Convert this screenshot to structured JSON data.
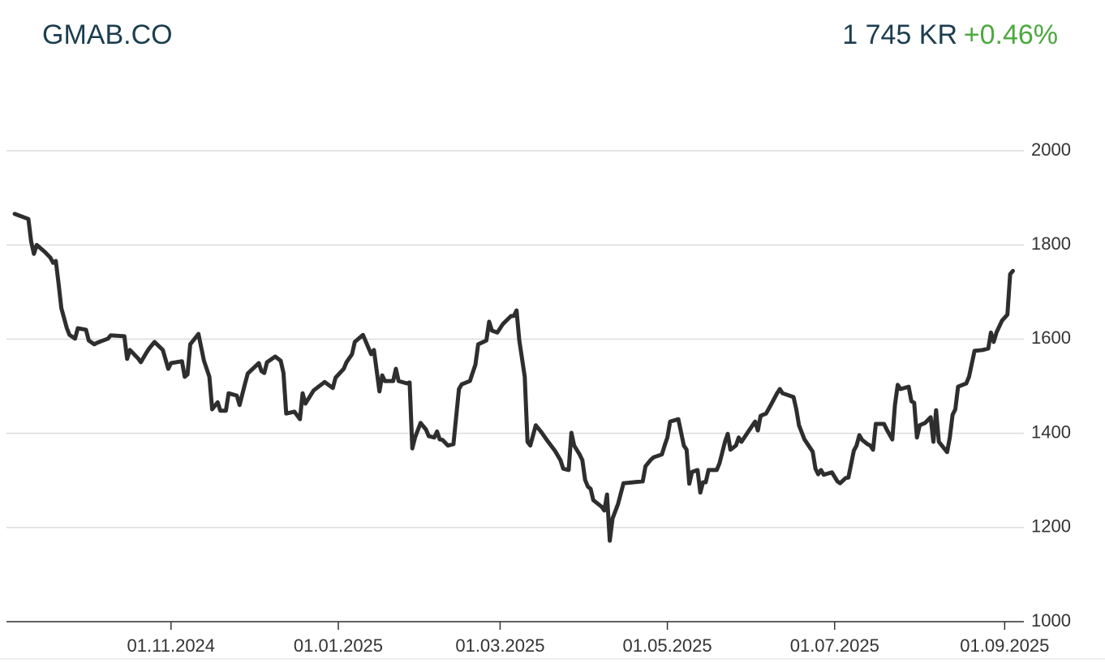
{
  "chart_data": {
    "type": "line",
    "title": "GMAB.CO",
    "price": "1 745 KR",
    "change": "+0.46%",
    "title_color": "#1c3d4f",
    "change_color": "#4ca83f",
    "grid": true,
    "x": [
      "2024-09-05",
      "2024-09-10",
      "2024-09-11",
      "2024-09-12",
      "2024-09-13",
      "2024-09-16",
      "2024-09-18",
      "2024-09-19",
      "2024-09-20",
      "2024-09-21",
      "2024-09-22",
      "2024-09-24",
      "2024-09-25",
      "2024-09-27",
      "2024-09-28",
      "2024-10-01",
      "2024-10-02",
      "2024-10-04",
      "2024-10-05",
      "2024-10-09",
      "2024-10-10",
      "2024-10-15",
      "2024-10-16",
      "2024-10-17",
      "2024-10-20",
      "2024-10-21",
      "2024-10-23",
      "2024-10-24",
      "2024-10-26",
      "2024-10-29",
      "2024-10-31",
      "2024-11-01",
      "2024-11-05",
      "2024-11-06",
      "2024-11-07",
      "2024-11-08",
      "2024-11-11",
      "2024-11-13",
      "2024-11-15",
      "2024-11-16",
      "2024-11-18",
      "2024-11-19",
      "2024-11-21",
      "2024-11-22",
      "2024-11-25",
      "2024-11-26",
      "2024-11-28",
      "2024-11-29",
      "2024-12-03",
      "2024-12-04",
      "2024-12-05",
      "2024-12-06",
      "2024-12-09",
      "2024-12-11",
      "2024-12-12",
      "2024-12-13",
      "2024-12-16",
      "2024-12-18",
      "2024-12-19",
      "2024-12-20",
      "2024-12-23",
      "2024-12-27",
      "2024-12-30",
      "2024-12-31",
      "2025-01-03",
      "2025-01-04",
      "2025-01-06",
      "2025-01-07",
      "2025-01-10",
      "2025-01-13",
      "2025-01-14",
      "2025-01-16",
      "2025-01-17",
      "2025-01-18",
      "2025-01-21",
      "2025-01-22",
      "2025-01-23",
      "2025-01-26",
      "2025-01-27",
      "2025-01-28",
      "2025-01-29",
      "2025-01-31",
      "2025-02-02",
      "2025-02-03",
      "2025-02-05",
      "2025-02-06",
      "2025-02-07",
      "2025-02-08",
      "2025-02-10",
      "2025-02-12",
      "2025-02-14",
      "2025-02-15",
      "2025-02-18",
      "2025-02-20",
      "2025-02-21",
      "2025-02-24",
      "2025-02-25",
      "2025-02-26",
      "2025-02-28",
      "2025-03-02",
      "2025-03-05",
      "2025-03-06",
      "2025-03-07",
      "2025-03-08",
      "2025-03-10",
      "2025-03-11",
      "2025-03-12",
      "2025-03-14",
      "2025-03-16",
      "2025-03-18",
      "2025-03-21",
      "2025-03-23",
      "2025-03-24",
      "2025-03-26",
      "2025-03-27",
      "2025-03-28",
      "2025-03-30",
      "2025-03-31",
      "2025-04-01",
      "2025-04-02",
      "2025-04-03",
      "2025-04-04",
      "2025-04-07",
      "2025-04-08",
      "2025-04-09",
      "2025-04-10",
      "2025-04-11",
      "2025-04-13",
      "2025-04-15",
      "2025-04-22",
      "2025-04-23",
      "2025-04-25",
      "2025-04-26",
      "2025-04-29",
      "2025-04-30",
      "2025-05-01",
      "2025-05-02",
      "2025-05-05",
      "2025-05-07",
      "2025-05-08",
      "2025-05-09",
      "2025-05-10",
      "2025-05-12",
      "2025-05-13",
      "2025-05-14",
      "2025-05-15",
      "2025-05-16",
      "2025-05-19",
      "2025-05-20",
      "2025-05-22",
      "2025-05-23",
      "2025-05-24",
      "2025-05-26",
      "2025-05-27",
      "2025-05-28",
      "2025-05-31",
      "2025-06-02",
      "2025-06-03",
      "2025-06-04",
      "2025-06-06",
      "2025-06-08",
      "2025-06-10",
      "2025-06-11",
      "2025-06-12",
      "2025-06-16",
      "2025-06-17",
      "2025-06-18",
      "2025-06-20",
      "2025-06-23",
      "2025-06-24",
      "2025-06-25",
      "2025-06-26",
      "2025-06-27",
      "2025-06-30",
      "2025-07-02",
      "2025-07-03",
      "2025-07-05",
      "2025-07-06",
      "2025-07-08",
      "2025-07-09",
      "2025-07-10",
      "2025-07-11",
      "2025-07-13",
      "2025-07-14",
      "2025-07-15",
      "2025-07-16",
      "2025-07-19",
      "2025-07-20",
      "2025-07-22",
      "2025-07-23",
      "2025-07-24",
      "2025-07-25",
      "2025-07-28",
      "2025-07-29",
      "2025-07-30",
      "2025-07-31",
      "2025-08-01",
      "2025-08-03",
      "2025-08-05",
      "2025-08-06",
      "2025-08-07",
      "2025-08-08",
      "2025-08-11",
      "2025-08-12",
      "2025-08-13",
      "2025-08-14",
      "2025-08-15",
      "2025-08-18",
      "2025-08-19",
      "2025-08-21",
      "2025-08-24",
      "2025-08-26",
      "2025-08-27",
      "2025-08-28",
      "2025-08-29",
      "2025-08-31",
      "2025-09-02",
      "2025-09-03",
      "2025-09-04"
    ],
    "series": [
      {
        "color": "#2e2e2e",
        "values": [
          1866,
          1855,
          1807,
          1781,
          1800,
          1785,
          1773,
          1762,
          1766,
          1718,
          1666,
          1623,
          1609,
          1601,
          1623,
          1620,
          1597,
          1589,
          1592,
          1601,
          1608,
          1606,
          1558,
          1577,
          1559,
          1551,
          1571,
          1580,
          1594,
          1577,
          1537,
          1549,
          1553,
          1520,
          1525,
          1589,
          1611,
          1554,
          1520,
          1451,
          1466,
          1448,
          1448,
          1485,
          1480,
          1460,
          1506,
          1527,
          1549,
          1532,
          1528,
          1551,
          1563,
          1554,
          1528,
          1442,
          1446,
          1430,
          1485,
          1463,
          1491,
          1509,
          1496,
          1518,
          1537,
          1551,
          1568,
          1594,
          1609,
          1568,
          1577,
          1489,
          1523,
          1511,
          1511,
          1537,
          1511,
          1506,
          1508,
          1368,
          1391,
          1422,
          1408,
          1394,
          1391,
          1404,
          1387,
          1386,
          1374,
          1377,
          1494,
          1504,
          1511,
          1546,
          1589,
          1597,
          1637,
          1618,
          1614,
          1632,
          1649,
          1649,
          1661,
          1597,
          1520,
          1382,
          1374,
          1417,
          1403,
          1386,
          1363,
          1343,
          1325,
          1322,
          1401,
          1374,
          1355,
          1343,
          1301,
          1287,
          1282,
          1258,
          1244,
          1236,
          1270,
          1172,
          1219,
          1250,
          1294,
          1298,
          1330,
          1344,
          1349,
          1355,
          1374,
          1391,
          1425,
          1430,
          1374,
          1365,
          1293,
          1318,
          1322,
          1274,
          1296,
          1296,
          1322,
          1322,
          1336,
          1382,
          1399,
          1365,
          1374,
          1391,
          1382,
          1408,
          1425,
          1406,
          1437,
          1442,
          1463,
          1485,
          1494,
          1485,
          1477,
          1451,
          1417,
          1387,
          1361,
          1325,
          1313,
          1322,
          1312,
          1317,
          1298,
          1294,
          1305,
          1306,
          1363,
          1374,
          1396,
          1386,
          1377,
          1374,
          1365,
          1420,
          1420,
          1408,
          1387,
          1460,
          1503,
          1494,
          1499,
          1468,
          1465,
          1391,
          1417,
          1422,
          1434,
          1382,
          1449,
          1382,
          1360,
          1391,
          1439,
          1451,
          1499,
          1506,
          1520,
          1575,
          1577,
          1580,
          1614,
          1594,
          1614,
          1639,
          1652,
          1738,
          1745
        ]
      }
    ],
    "xlim": [
      "2024-09-02",
      "2025-09-08"
    ],
    "xticks": [
      {
        "value": "2024-11-01",
        "label": "01.11.2024"
      },
      {
        "value": "2025-01-01",
        "label": "01.01.2025"
      },
      {
        "value": "2025-03-01",
        "label": "01.03.2025"
      },
      {
        "value": "2025-05-01",
        "label": "01.05.2025"
      },
      {
        "value": "2025-07-01",
        "label": "01.07.2025"
      },
      {
        "value": "2025-09-01",
        "label": "01.09.2025"
      }
    ],
    "ylim": [
      1000,
      2000
    ],
    "yticks": [
      1000,
      1200,
      1400,
      1600,
      1800,
      2000
    ]
  }
}
